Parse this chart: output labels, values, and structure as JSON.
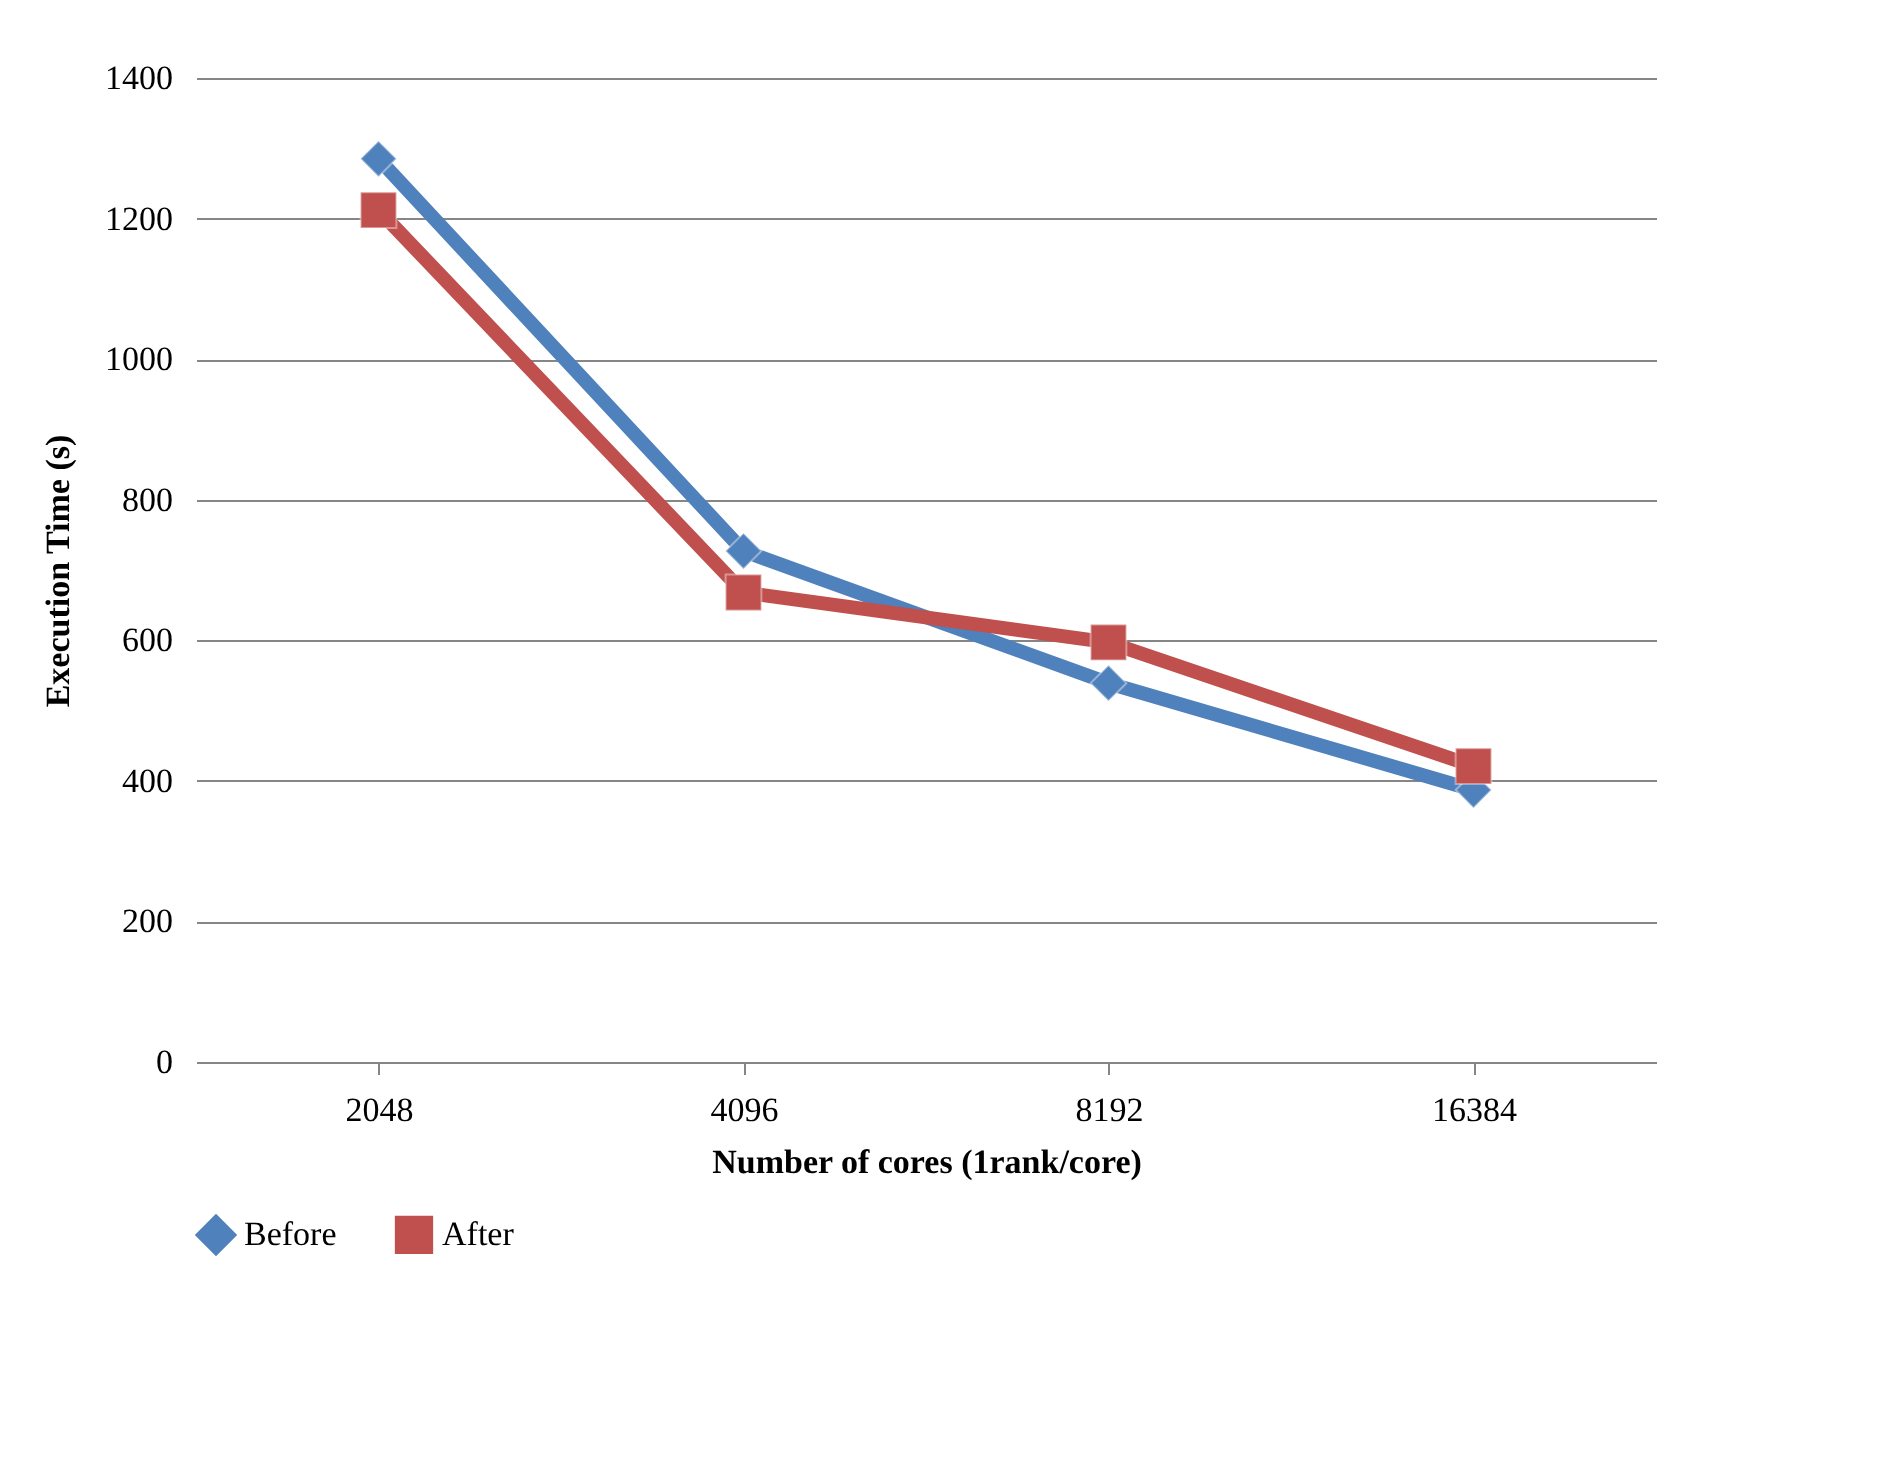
{
  "chart_data": {
    "type": "line",
    "xlabel": "Number of cores (1rank/core)",
    "ylabel": "Execution Time (s)",
    "categories": [
      "2048",
      "4096",
      "8192",
      "16384"
    ],
    "series": [
      {
        "name": "Before",
        "color": "#4f81bd",
        "marker": "diamond",
        "values": [
          1285,
          727,
          539,
          387
        ]
      },
      {
        "name": "After",
        "color": "#c0504d",
        "marker": "square",
        "values": [
          1212,
          668,
          597,
          421
        ]
      }
    ],
    "ylim": [
      0,
      1400
    ],
    "yticks": [
      0,
      200,
      400,
      600,
      800,
      1000,
      1200,
      1400
    ],
    "grid": "y",
    "legend": "bottom"
  }
}
